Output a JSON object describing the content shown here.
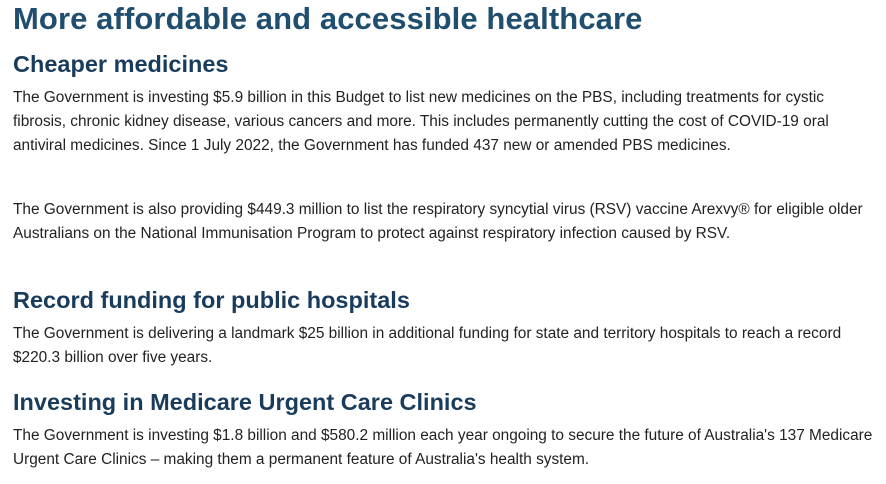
{
  "title": "More affordable and accessible healthcare",
  "sections": [
    {
      "heading": "Cheaper medicines",
      "paragraphs": [
        "The Government is investing $5.9 billion in this Budget to list new medicines on the PBS, including treatments for cystic fibrosis, chronic kidney disease, various cancers and more. This includes permanently cutting the cost of COVID-19 oral antiviral medicines. Since 1 July 2022, the Government has funded 437 new or amended PBS medicines.",
        "The Government is also providing $449.3 million to list the respiratory syncytial virus (RSV) vaccine Arexvy® for eligible older Australians on the National Immunisation Program to protect against respiratory infection caused by RSV."
      ]
    },
    {
      "heading": "Record funding for public hospitals",
      "paragraphs": [
        "The Government is delivering a landmark $25 billion in additional funding for state and territory hospitals to reach a record $220.3 billion over five years."
      ]
    },
    {
      "heading": "Investing in Medicare Urgent Care Clinics",
      "paragraphs": [
        "The Government is investing $1.8 billion and $580.2 million each year ongoing to secure the future of Australia's 137 Medicare Urgent Care Clinics – making them a permanent feature of Australia's health system."
      ]
    }
  ]
}
